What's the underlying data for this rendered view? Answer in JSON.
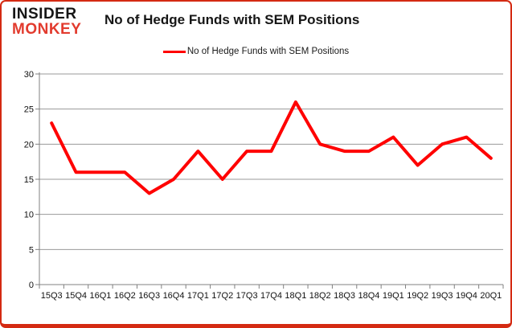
{
  "header": {
    "logo_line1": "INSIDER",
    "logo_line2": "MONKEY",
    "title": "No of Hedge Funds with SEM Positions"
  },
  "legend": {
    "label": "No of Hedge Funds with SEM Positions"
  },
  "colors": {
    "line": "#ff0000",
    "logo_black": "#161616",
    "logo_red": "#e23b2e",
    "border": "#d42a12",
    "gridline": "#9a9a9a",
    "axis": "#808080",
    "tick_text": "#111111"
  },
  "chart_data": {
    "type": "line",
    "title": "No of Hedge Funds with SEM Positions",
    "categories": [
      "15Q3",
      "15Q4",
      "16Q1",
      "16Q2",
      "16Q3",
      "16Q4",
      "17Q1",
      "17Q2",
      "17Q3",
      "17Q4",
      "18Q1",
      "18Q2",
      "18Q3",
      "18Q4",
      "19Q1",
      "19Q2",
      "19Q3",
      "19Q4",
      "20Q1"
    ],
    "series": [
      {
        "name": "No of Hedge Funds with SEM Positions",
        "values": [
          23,
          16,
          16,
          16,
          13,
          15,
          19,
          15,
          19,
          19,
          26,
          20,
          19,
          19,
          21,
          17,
          20,
          21,
          18
        ]
      }
    ],
    "xlabel": "",
    "ylabel": "",
    "ylim": [
      0,
      30
    ],
    "ytick_step": 5,
    "grid": true,
    "legend_position": "top"
  }
}
